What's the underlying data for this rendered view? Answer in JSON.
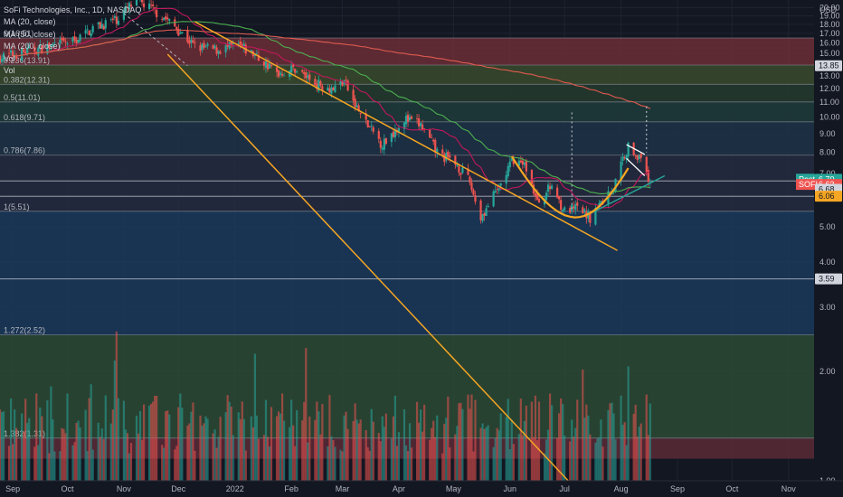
{
  "legend": {
    "title": "SoFi Technologies, Inc., 1D, NASDAQ",
    "lines": [
      "MA (20, close)",
      "MA (50, close)",
      "MA (200, close)",
      "Vol",
      "Vol"
    ]
  },
  "currency": "USD",
  "colors": {
    "background": "#131722",
    "grid": "#1f2330",
    "up": "#26a69a",
    "down": "#ef5350",
    "ma20": "#c2185b",
    "ma50": "#4caf50",
    "ma200": "#e05a4f",
    "trend": "#f5a623",
    "axis_text": "#b2b5be"
  },
  "chart_data": {
    "type": "candlestick",
    "y_scale": "log",
    "ylim": [
      1.0,
      21.0
    ],
    "y_ticks": [
      "1.00",
      "2.00",
      "3.00",
      "4.00",
      "5.00",
      "6.00",
      "7.00",
      "8.00",
      "9.00",
      "10.00",
      "11.00",
      "12.00",
      "13.00",
      "14.00",
      "15.00",
      "16.00",
      "17.00",
      "18.00",
      "19.00",
      "20.00"
    ],
    "x_tick_labels": [
      "Sep",
      "Oct",
      "Nov",
      "Dec",
      "2022",
      "Feb",
      "Mar",
      "Apr",
      "May",
      "Jun",
      "Jul",
      "Aug",
      "Sep",
      "Oct",
      "Nov"
    ],
    "x_range": [
      "2021-08-25",
      "2022-11-15"
    ],
    "x_ticks": [
      "2021-09-01",
      "2021-10-01",
      "2021-11-01",
      "2021-12-01",
      "2022-01-01",
      "2022-02-01",
      "2022-03-01",
      "2022-04-01",
      "2022-05-01",
      "2022-06-01",
      "2022-07-01",
      "2022-08-01",
      "2022-09-01",
      "2022-10-01",
      "2022-11-01"
    ],
    "last_date": "2022-08-17",
    "price_anchors": [
      [
        "2021-08-25",
        14.6
      ],
      [
        "2021-09-10",
        15.2
      ],
      [
        "2021-09-25",
        15.8
      ],
      [
        "2021-10-05",
        16.2
      ],
      [
        "2021-10-15",
        17.6
      ],
      [
        "2021-10-28",
        18.6
      ],
      [
        "2021-11-08",
        21.0
      ],
      [
        "2021-11-22",
        19.0
      ],
      [
        "2021-12-03",
        17.0
      ],
      [
        "2021-12-10",
        15.6
      ],
      [
        "2021-12-22",
        15.3
      ],
      [
        "2022-01-03",
        15.7
      ],
      [
        "2022-01-12",
        14.8
      ],
      [
        "2022-01-24",
        13.2
      ],
      [
        "2022-02-03",
        13.6
      ],
      [
        "2022-02-14",
        12.4
      ],
      [
        "2022-02-24",
        12.0
      ],
      [
        "2022-03-02",
        12.6
      ],
      [
        "2022-03-07",
        11.0
      ],
      [
        "2022-03-14",
        9.6
      ],
      [
        "2022-03-23",
        8.4
      ],
      [
        "2022-04-04",
        9.9
      ],
      [
        "2022-04-13",
        9.5
      ],
      [
        "2022-04-22",
        8.0
      ],
      [
        "2022-05-03",
        7.4
      ],
      [
        "2022-05-10",
        6.6
      ],
      [
        "2022-05-16",
        5.3
      ],
      [
        "2022-05-26",
        6.4
      ],
      [
        "2022-06-03",
        7.7
      ],
      [
        "2022-06-10",
        7.3
      ],
      [
        "2022-06-16",
        5.8
      ],
      [
        "2022-06-24",
        6.5
      ],
      [
        "2022-07-01",
        5.5
      ],
      [
        "2022-07-08",
        5.6
      ],
      [
        "2022-07-15",
        5.3
      ],
      [
        "2022-07-22",
        5.9
      ],
      [
        "2022-07-28",
        6.4
      ],
      [
        "2022-08-02",
        7.7
      ],
      [
        "2022-08-05",
        8.3
      ],
      [
        "2022-08-10",
        7.9
      ],
      [
        "2022-08-17",
        6.63
      ]
    ],
    "moving_averages": [
      {
        "name": "MA (20, close)",
        "period": 20,
        "color": "#c2185b"
      },
      {
        "name": "MA (50, close)",
        "period": 50,
        "color": "#4caf50"
      },
      {
        "name": "MA (200, close)",
        "period": 200,
        "color": "#e05a4f"
      }
    ],
    "volume_max_label": "2.00",
    "fibonacci": [
      {
        "label": "0(16.51)",
        "price": 16.51,
        "fill": "#6b2e36"
      },
      {
        "label": "0.236(13.91)",
        "price": 13.91,
        "fill": "#3a4a2c"
      },
      {
        "label": "0.382(12.31)",
        "price": 12.31,
        "fill": "#243b2e"
      },
      {
        "label": "0.5(11.01)",
        "price": 11.01,
        "fill": "#1f3b39"
      },
      {
        "label": "0.618(9.71)",
        "price": 9.71,
        "fill": "#1e3347"
      },
      {
        "label": "0.786(7.86)",
        "price": 7.86,
        "fill": "#252b3f"
      },
      {
        "label": "1(5.51)",
        "price": 5.51,
        "fill": "#1b3a5c"
      },
      {
        "label": "1.272(2.52)",
        "price": 2.52,
        "fill": "#2d4a35"
      },
      {
        "label": "1.382(1.31)",
        "price": 1.31,
        "fill": "#5a2a36"
      }
    ],
    "fib_bottom": 1.15,
    "horizontal_lines": [
      6.06,
      6.68,
      3.59
    ],
    "axis_tags": [
      {
        "text": "13.85",
        "price": 13.85,
        "bg": "#d1d4dc",
        "fg": "#131722"
      },
      {
        "text": "6.70",
        "price": 6.75,
        "bg": "#26a69a",
        "fg": "#ffffff",
        "prefix": "Post"
      },
      {
        "text": "6.63",
        "price": 6.53,
        "bg": "#ef5350",
        "fg": "#ffffff",
        "prefix": "SOFI"
      },
      {
        "text": "6.68",
        "price": 6.33,
        "bg": "#d1d4dc",
        "fg": "#131722"
      },
      {
        "text": "6.06",
        "price": 6.06,
        "bg": "#f5a623",
        "fg": "#131722"
      },
      {
        "text": "3.59",
        "price": 3.59,
        "bg": "#d1d4dc",
        "fg": "#131722"
      }
    ]
  }
}
